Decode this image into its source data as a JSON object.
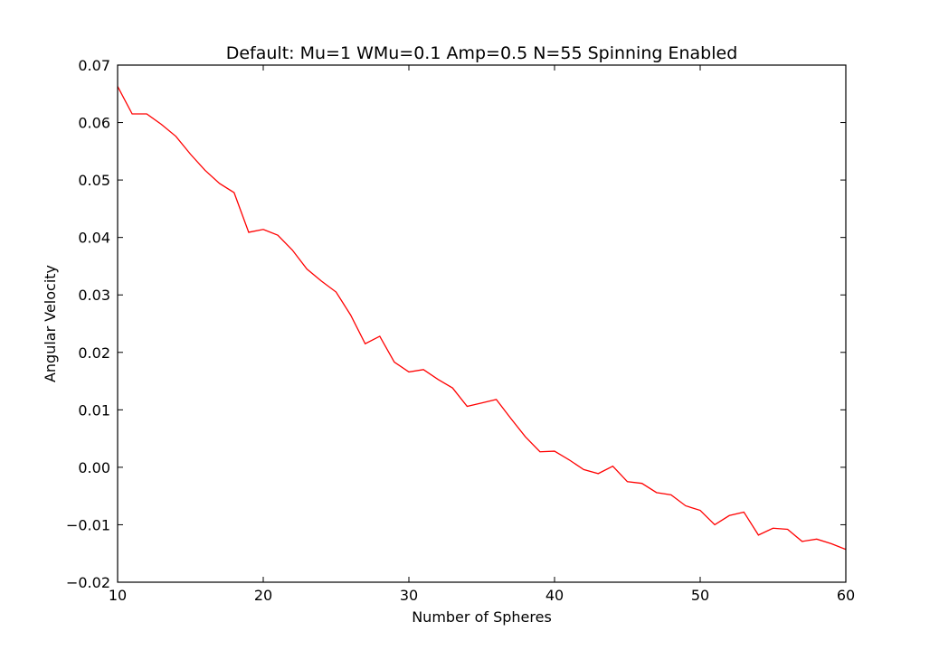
{
  "chart_data": {
    "type": "line",
    "title": "Default: Mu=1 WMu=0.1 Amp=0.5 N=55 Spinning Enabled",
    "xlabel": "Number of Spheres",
    "ylabel": "Angular Velocity",
    "xlim": [
      10,
      60
    ],
    "ylim": [
      -0.02,
      0.07
    ],
    "x_ticks": [
      10,
      20,
      30,
      40,
      50,
      60
    ],
    "y_ticks": [
      -0.02,
      -0.01,
      0.0,
      0.01,
      0.02,
      0.03,
      0.04,
      0.05,
      0.06,
      0.07
    ],
    "x_tick_labels": [
      "10",
      "20",
      "30",
      "40",
      "50",
      "60"
    ],
    "y_tick_labels": [
      "−0.02",
      "−0.01",
      "0.00",
      "0.01",
      "0.02",
      "0.03",
      "0.04",
      "0.05",
      "0.06",
      "0.07"
    ],
    "grid": false,
    "legend": false,
    "colors": {
      "line": "#ff0000",
      "axes": "#000000",
      "background": "#ffffff"
    },
    "series": [
      {
        "x": [
          10,
          11,
          12,
          13,
          14,
          15,
          16,
          17,
          18,
          19,
          20,
          21,
          22,
          23,
          24,
          25,
          26,
          27,
          28,
          29,
          30,
          31,
          32,
          33,
          34,
          35,
          36,
          37,
          38,
          39,
          40,
          41,
          42,
          43,
          44,
          45,
          46,
          47,
          48,
          49,
          50,
          51,
          52,
          53,
          54,
          55,
          56,
          57,
          58,
          59,
          60
        ],
        "values": [
          0.0663,
          0.0615,
          0.0615,
          0.0597,
          0.0576,
          0.0545,
          0.0517,
          0.0494,
          0.0478,
          0.0409,
          0.0414,
          0.0404,
          0.0378,
          0.0345,
          0.0324,
          0.0305,
          0.0265,
          0.0215,
          0.0228,
          0.0183,
          0.0166,
          0.017,
          0.0153,
          0.0138,
          0.0106,
          0.0112,
          0.0118,
          0.0085,
          0.0053,
          0.0027,
          0.0028,
          0.0013,
          -0.0004,
          -0.0011,
          0.0002,
          -0.0025,
          -0.0028,
          -0.0044,
          -0.0048,
          -0.0067,
          -0.0075,
          -0.01,
          -0.0084,
          -0.0078,
          -0.0118,
          -0.0106,
          -0.0108,
          -0.0129,
          -0.0125,
          -0.0133,
          -0.0143
        ]
      }
    ]
  }
}
